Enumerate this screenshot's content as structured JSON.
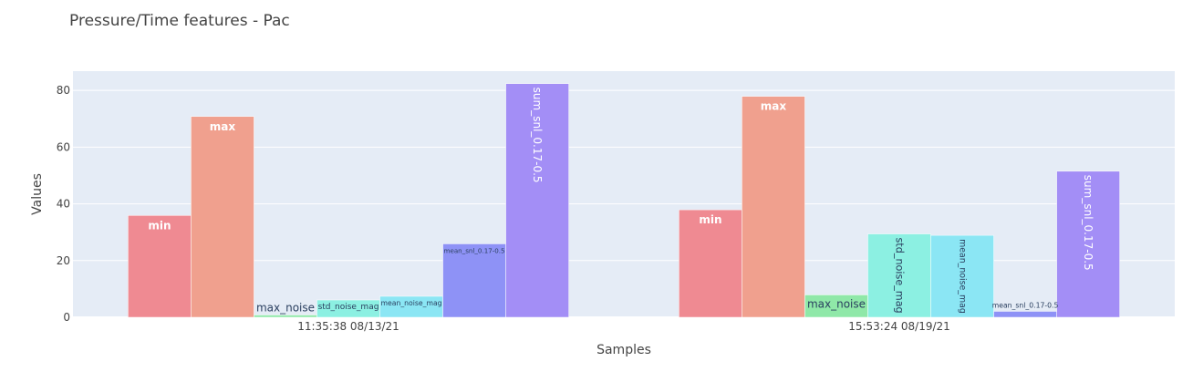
{
  "chart_data": {
    "type": "bar",
    "title": "Pressure/Time features - Pac",
    "xlabel": "Samples",
    "ylabel": "Values",
    "ylim": [
      0,
      86.8
    ],
    "yticks": [
      0,
      20,
      40,
      60,
      80
    ],
    "grid": true,
    "categories": [
      "11:35:38 08/13/21",
      "15:53:24 08/19/21"
    ],
    "series": [
      {
        "name": "min",
        "color": "#ef8a92",
        "values": [
          35.9,
          37.9
        ],
        "labels": [
          "min",
          "min"
        ],
        "label_style": "inside-bold"
      },
      {
        "name": "max",
        "color": "#f0a08e",
        "values": [
          70.8,
          77.9
        ],
        "labels": [
          "max",
          "max"
        ],
        "label_style": "inside-bold"
      },
      {
        "name": "max_noise",
        "color": "#8fe8a8",
        "values": [
          0.8,
          7.9
        ],
        "labels": [
          "max_noise",
          "max_noise"
        ],
        "label_style": "auto"
      },
      {
        "name": "std_noise_mag",
        "color": "#8cf0e2",
        "values": [
          6.1,
          29.4
        ],
        "labels": [
          "std_noise_mag",
          "std_noise_mag"
        ],
        "label_style": "auto"
      },
      {
        "name": "mean_noise_mag",
        "color": "#8be6f4",
        "values": [
          7.4,
          28.9
        ],
        "labels": [
          "mean_noise_mag",
          "mean_noise_mag"
        ],
        "label_style": "auto"
      },
      {
        "name": "mean_snl_0.17-0.5",
        "color": "#8e92f6",
        "values": [
          25.9,
          2.1
        ],
        "labels": [
          "mean_snl_0.17-0.5",
          "mean_snl_0.17-0.5"
        ],
        "label_style": "auto"
      },
      {
        "name": "sum_snl_0.17-0.5",
        "color": "#a38ef6",
        "values": [
          82.4,
          51.5
        ],
        "labels": [
          "sum_snl_0.17-0.5",
          "sum_snl_0.17-0.5"
        ],
        "label_style": "auto"
      }
    ]
  }
}
